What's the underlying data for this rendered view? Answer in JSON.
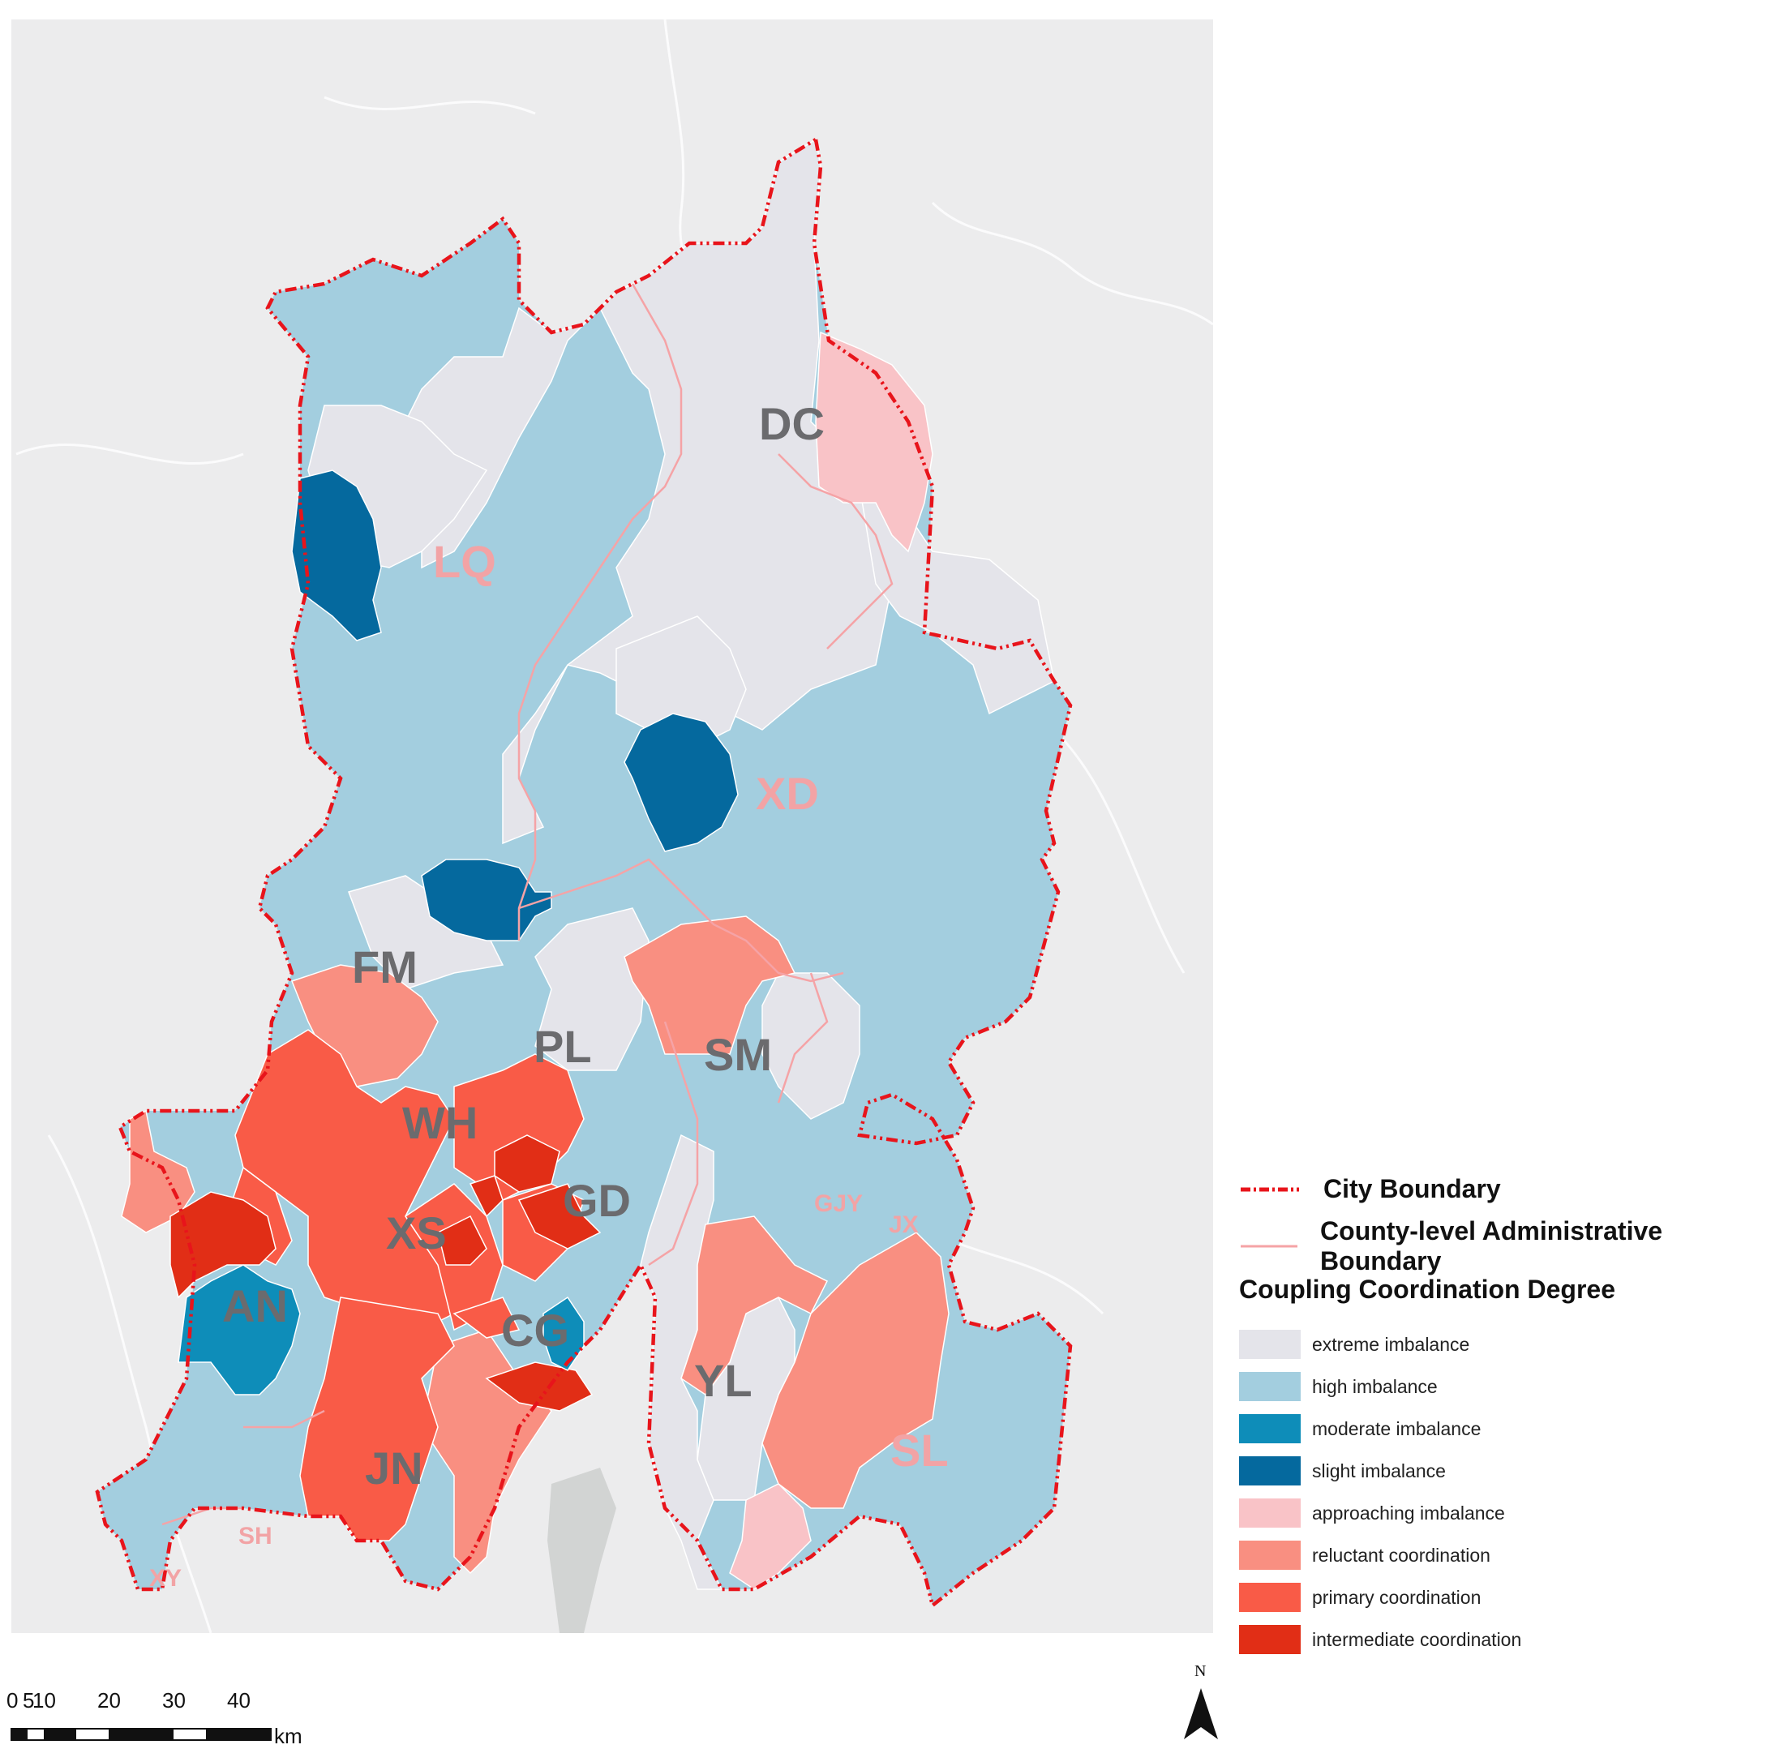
{
  "map": {
    "labels": {
      "DC": "DC",
      "LQ": "LQ",
      "XD": "XD",
      "FM": "FM",
      "PL": "PL",
      "SM": "SM",
      "WH": "WH",
      "GD": "GD",
      "XS": "XS",
      "AN": "AN",
      "CG": "CG",
      "YL": "YL",
      "JN": "JN",
      "SL": "SL",
      "GJY": "GJY",
      "JX": "JX",
      "SH": "SH",
      "XY": "XY"
    }
  },
  "legend": {
    "city_boundary": "City Boundary",
    "county_boundary": "County-level Administrative Boundary",
    "heading": "Coupling Coordination Degree",
    "classes": [
      {
        "label": "extreme imbalance",
        "color": "#e4e4ea"
      },
      {
        "label": "high imbalance",
        "color": "#a3cedf"
      },
      {
        "label": "moderate imbalance",
        "color": "#0e8db9"
      },
      {
        "label": "slight imbalance",
        "color": "#05699e"
      },
      {
        "label": "approaching imbalance",
        "color": "#f9c3c7"
      },
      {
        "label": "reluctant coordination",
        "color": "#f98f81"
      },
      {
        "label": "primary coordination",
        "color": "#f95b47"
      },
      {
        "label": "intermediate coordination",
        "color": "#e12e16"
      }
    ],
    "boundary_colors": {
      "city": "#e8141b",
      "county": "#f5a3a6"
    }
  },
  "scale_bar": {
    "ticks": [
      "0",
      "5",
      "10",
      "20",
      "30",
      "40"
    ],
    "unit": "km"
  },
  "north": {
    "letter": "N"
  }
}
